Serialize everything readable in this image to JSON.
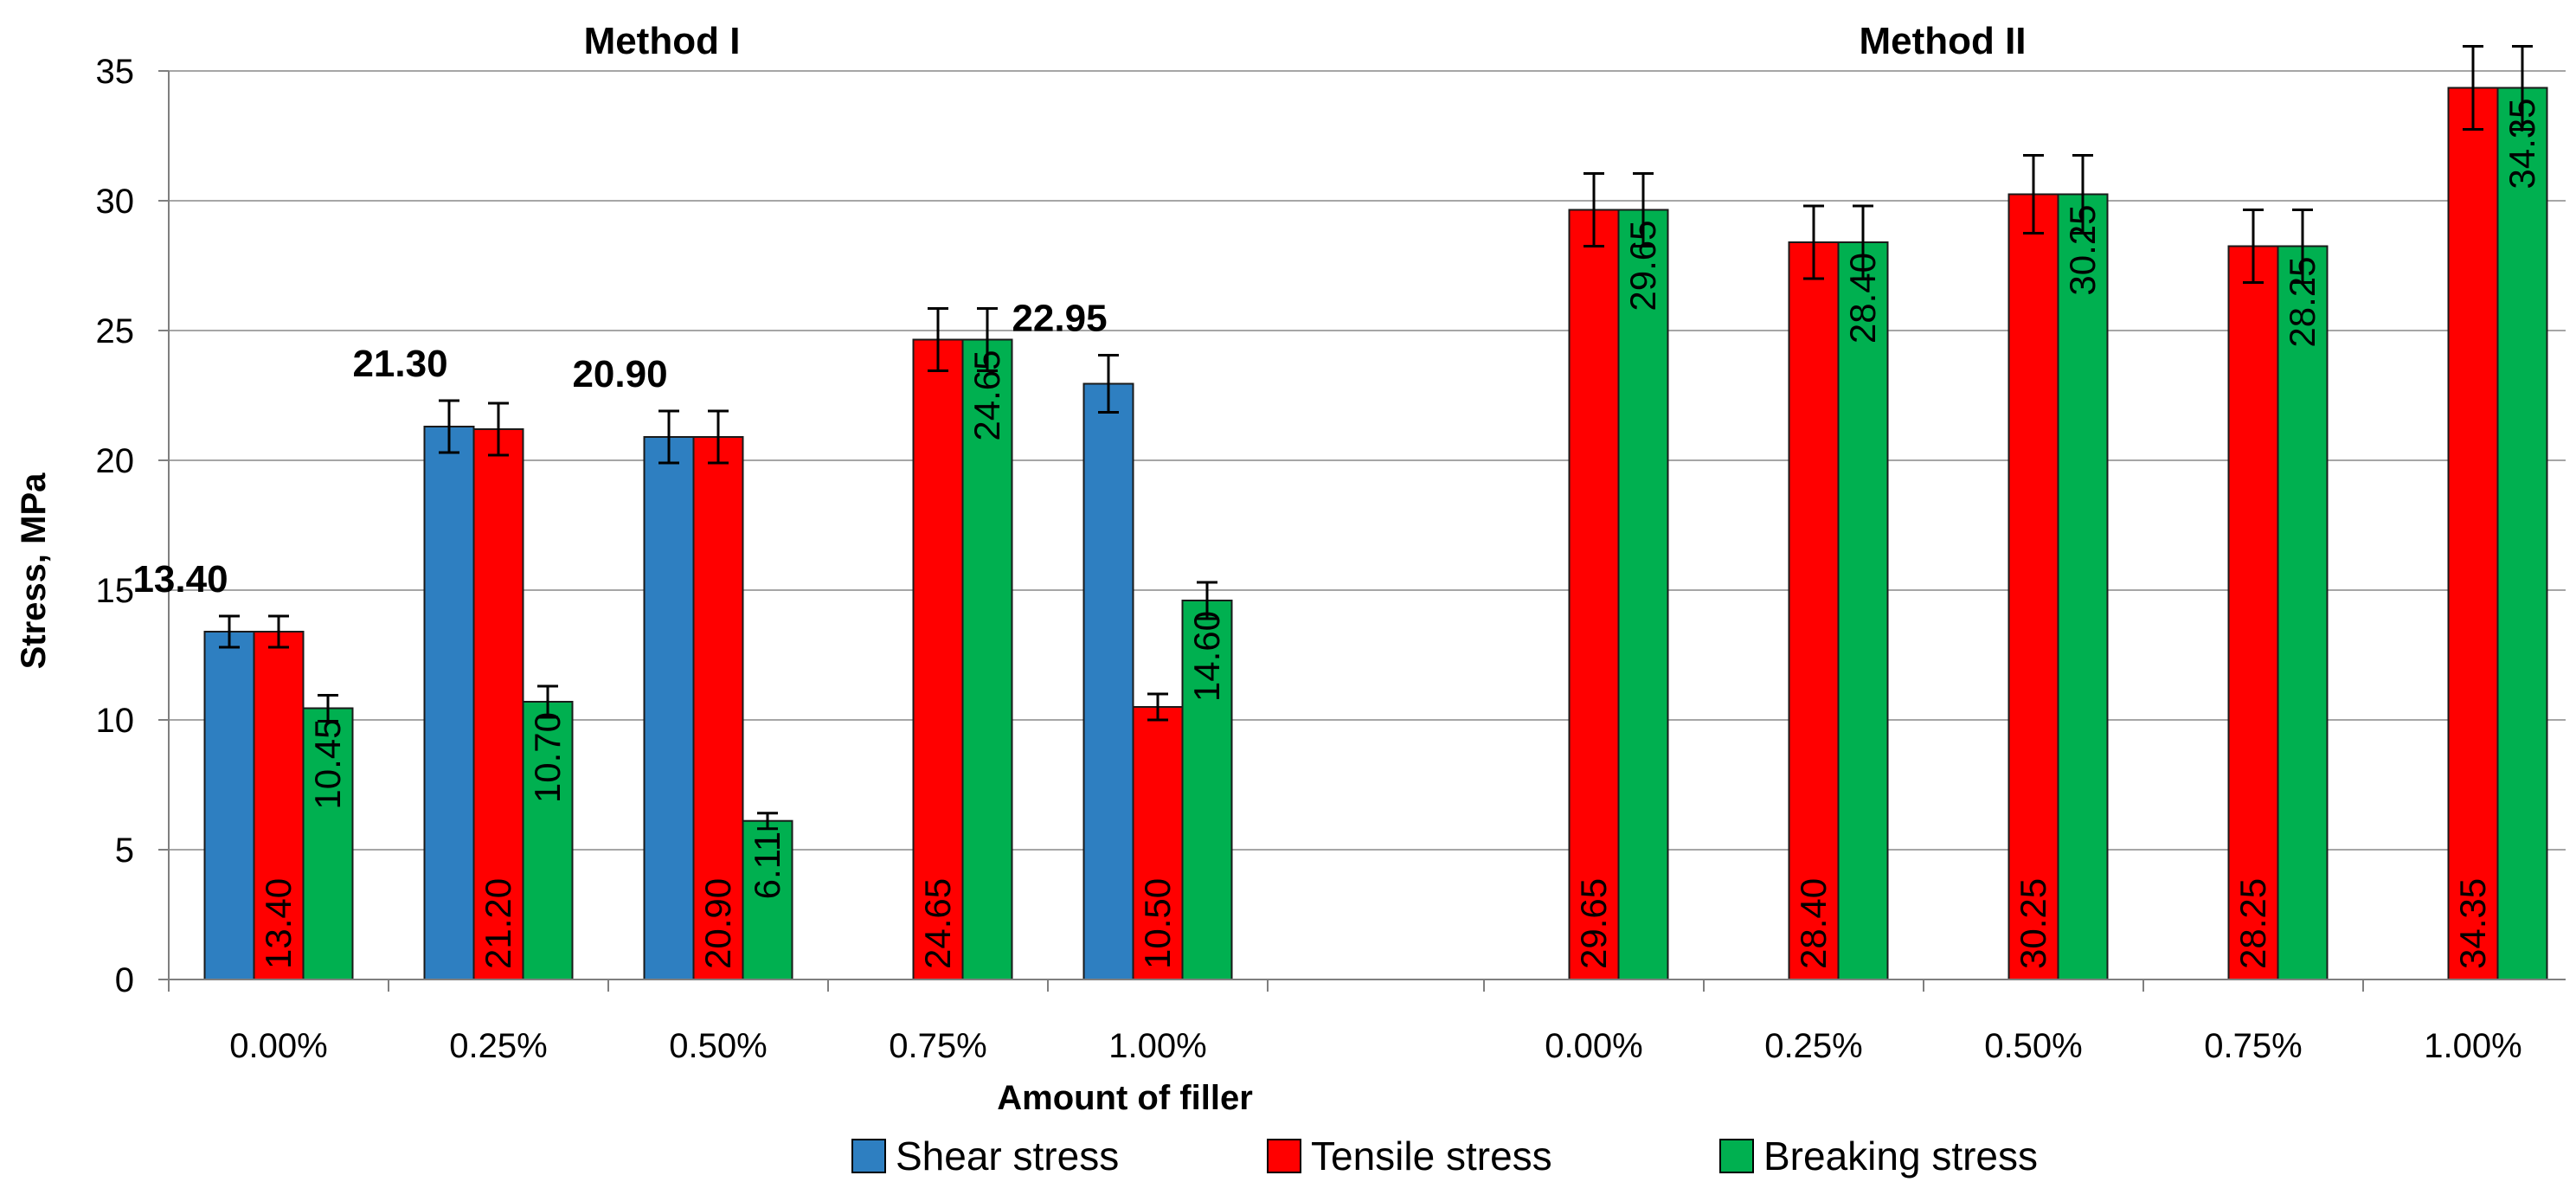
{
  "chart_data": {
    "type": "bar",
    "groups": [
      {
        "title": "Method I",
        "categories": [
          "0.00%",
          "0.25%",
          "0.50%",
          "0.75%",
          "1.00%"
        ]
      },
      {
        "title": "Method II",
        "categories": [
          "0.00%",
          "0.25%",
          "0.50%",
          "0.75%",
          "1.00%"
        ]
      }
    ],
    "series": [
      {
        "name": "Shear stress",
        "color": "#2e7fc1",
        "values": [
          13.4,
          21.3,
          20.9,
          null,
          22.95,
          null,
          null,
          null,
          null,
          null
        ],
        "labels": [
          "13.40",
          "21.30",
          "20.90",
          "",
          "22.95",
          "",
          "",
          "",
          "",
          ""
        ],
        "errors": [
          0.6,
          1.0,
          1.0,
          null,
          1.1,
          null,
          null,
          null,
          null,
          null
        ]
      },
      {
        "name": "Tensile stress",
        "color": "#ff0000",
        "values": [
          13.4,
          21.2,
          20.9,
          24.65,
          10.5,
          29.65,
          28.4,
          30.25,
          28.25,
          34.35
        ],
        "labels": [
          "13.40",
          "21.20",
          "20.90",
          "24.65",
          "10.50",
          "29.65",
          "28.40",
          "30.25",
          "28.25",
          "34.35"
        ],
        "errors": [
          0.6,
          1.0,
          1.0,
          1.2,
          0.5,
          1.4,
          1.4,
          1.5,
          1.4,
          1.6
        ]
      },
      {
        "name": "Breaking stress",
        "color": "#00b050",
        "values": [
          10.45,
          10.7,
          6.11,
          24.65,
          14.6,
          29.65,
          28.4,
          30.25,
          28.25,
          34.35
        ],
        "labels": [
          "10.45",
          "10.70",
          "6.11",
          "24.65",
          "14.60",
          "29.65",
          "28.40",
          "30.25",
          "28.25",
          "34.35"
        ],
        "errors": [
          0.5,
          0.6,
          0.3,
          1.2,
          0.7,
          1.4,
          1.4,
          1.5,
          1.4,
          1.6
        ]
      }
    ],
    "ylabel": "Stress, MPa",
    "xlabel": "Amount of filler",
    "ylim": [
      0,
      35
    ],
    "yticks": [
      0,
      5,
      10,
      15,
      20,
      25,
      30,
      35
    ],
    "ytick_labels": [
      "0",
      "5",
      "10",
      "15",
      "20",
      "25",
      "30",
      "35"
    ],
    "grid": true,
    "legend_position": "bottom"
  }
}
